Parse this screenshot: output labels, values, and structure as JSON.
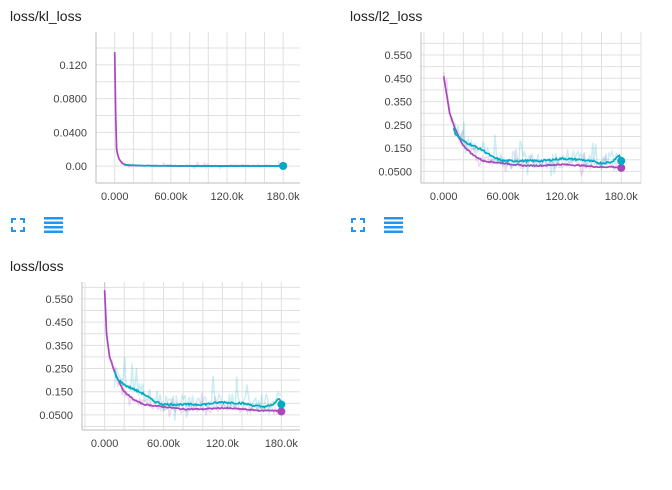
{
  "colors": {
    "run_a": "#ab47bc",
    "run_b": "#00acc1",
    "grid": "#e0e0e0",
    "axis": "#bdbdbd",
    "icon": "#2196f3"
  },
  "icons": {
    "expand": "fullscreen-icon",
    "data": "list-lines-icon"
  },
  "chart_data": [
    {
      "type": "line",
      "title": "loss/kl_loss",
      "xlim": [
        -20000,
        198000
      ],
      "ylim": [
        -0.02,
        0.159
      ],
      "xticks": [
        0,
        60000,
        120000,
        180000
      ],
      "xtick_labels": [
        "0.000",
        "60.00k",
        "120.0k",
        "180.0k"
      ],
      "yticks": [
        0,
        0.04,
        0.08,
        0.12
      ],
      "ytick_labels": [
        "0.00",
        "0.0400",
        "0.0800",
        "0.120"
      ],
      "xgrid_step": 20000,
      "ygrid_step": 0.02,
      "grid": true,
      "series": [
        {
          "color": "#ab47bc",
          "x": [
            0,
            1000,
            2000,
            3500,
            5000,
            7500,
            10000,
            15000,
            30000,
            60000,
            120000,
            180000
          ],
          "y": [
            0.135,
            0.06,
            0.02,
            0.012,
            0.008,
            0.004,
            0.002,
            0.001,
            0.0005,
            0.0003,
            0.0002,
            0.0002
          ],
          "noise": 0.003
        },
        {
          "color": "#00acc1",
          "x": [
            10000,
            30000,
            60000,
            90000,
            120000,
            150000,
            180000
          ],
          "y": [
            0.0015,
            0.0005,
            0.0003,
            0.0002,
            0.0002,
            0.0002,
            0.0002
          ],
          "noise": 0.0005
        }
      ]
    },
    {
      "type": "line",
      "title": "loss/l2_loss",
      "xlim": [
        -23000,
        200000
      ],
      "ylim": [
        0.0,
        0.649
      ],
      "xticks": [
        0,
        60000,
        120000,
        180000
      ],
      "xtick_labels": [
        "0.000",
        "60.00k",
        "120.0k",
        "180.0k"
      ],
      "yticks": [
        0.05,
        0.15,
        0.25,
        0.35,
        0.45,
        0.55
      ],
      "ytick_labels": [
        "0.0500",
        "0.150",
        "0.250",
        "0.350",
        "0.450",
        "0.550"
      ],
      "xgrid_step": 20000,
      "ygrid_step": 0.05,
      "grid": true,
      "series": [
        {
          "color": "#ab47bc",
          "x": [
            0,
            3000,
            6000,
            10000,
            15000,
            20000,
            30000,
            40000,
            50000,
            60000,
            80000,
            100000,
            120000,
            140000,
            160000,
            170000,
            180000
          ],
          "y": [
            0.46,
            0.38,
            0.3,
            0.25,
            0.2,
            0.16,
            0.12,
            0.095,
            0.09,
            0.085,
            0.075,
            0.075,
            0.08,
            0.075,
            0.068,
            0.07,
            0.065
          ],
          "noise": 0.04
        },
        {
          "color": "#00acc1",
          "x": [
            10000,
            12000,
            20000,
            30000,
            40000,
            50000,
            60000,
            80000,
            100000,
            120000,
            140000,
            160000,
            170000,
            178000,
            180000
          ],
          "y": [
            0.24,
            0.21,
            0.18,
            0.16,
            0.14,
            0.11,
            0.095,
            0.095,
            0.095,
            0.105,
            0.1,
            0.085,
            0.09,
            0.12,
            0.095
          ],
          "noise": 0.07
        }
      ]
    },
    {
      "type": "line",
      "title": "loss/loss",
      "xlim": [
        -23000,
        199000
      ],
      "ylim": [
        -0.015,
        0.623
      ],
      "xticks": [
        0,
        60000,
        120000,
        180000
      ],
      "xtick_labels": [
        "0.000",
        "60.00k",
        "120.0k",
        "180.0k"
      ],
      "yticks": [
        0.05,
        0.15,
        0.25,
        0.35,
        0.45,
        0.55
      ],
      "ytick_labels": [
        "0.0500",
        "0.150",
        "0.250",
        "0.350",
        "0.450",
        "0.550"
      ],
      "xgrid_step": 20000,
      "ygrid_step": 0.05,
      "grid": true,
      "series": [
        {
          "color": "#ab47bc",
          "x": [
            0,
            2000,
            5000,
            10000,
            15000,
            20000,
            30000,
            40000,
            50000,
            60000,
            80000,
            100000,
            120000,
            140000,
            160000,
            170000,
            180000
          ],
          "y": [
            0.59,
            0.4,
            0.3,
            0.24,
            0.19,
            0.15,
            0.115,
            0.095,
            0.09,
            0.085,
            0.075,
            0.075,
            0.08,
            0.075,
            0.068,
            0.07,
            0.065
          ],
          "noise": 0.04
        },
        {
          "color": "#00acc1",
          "x": [
            10000,
            12000,
            20000,
            30000,
            40000,
            50000,
            60000,
            80000,
            100000,
            120000,
            140000,
            160000,
            170000,
            178000,
            180000
          ],
          "y": [
            0.24,
            0.21,
            0.18,
            0.16,
            0.14,
            0.11,
            0.095,
            0.095,
            0.095,
            0.105,
            0.1,
            0.085,
            0.09,
            0.12,
            0.095
          ],
          "noise": 0.07
        }
      ]
    }
  ]
}
